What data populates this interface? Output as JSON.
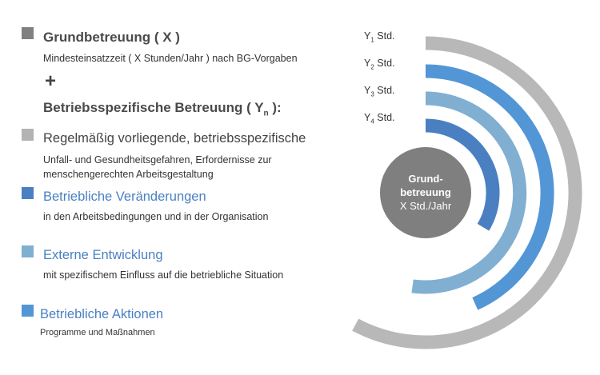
{
  "colors": {
    "grund": "#808080",
    "regel": "#b3b3b3",
    "veraenderung": "#4a80c2",
    "extern": "#80afd2",
    "aktion": "#5296d5",
    "y1": "#b8b8b8",
    "y2": "#5296d5",
    "y3": "#80afd2",
    "y4": "#4a80c2",
    "center": "#7f7f7f"
  },
  "legend": {
    "grund_title": "Grundbetreuung ( X )",
    "grund_sub": "Mindesteinsatzzeit ( X Stunden/Jahr ) nach BG-Vorgaben",
    "plus": "+",
    "betrieb_title": "Betriebsspezifische Betreuung ( Y",
    "betrieb_sub_n": "n",
    "betrieb_title_end": " ):",
    "regel_title": "Regelmäßig vorliegende, betriebsspezifische",
    "regel_sub1": "Unfall- und Gesundheitsgefahren,  Erfordernisse zur",
    "regel_sub2": "menschengerechten Arbeitsgestaltung",
    "veraenderung_title": "Betriebliche Veränderungen",
    "veraenderung_sub": "in den Arbeitsbedingungen und in der Organisation",
    "extern_title": "Externe Entwicklung",
    "extern_sub": "mit spezifischem Einfluss auf die betriebliche Situation",
    "aktion_title": "Betriebliche Aktionen",
    "aktion_sub": "Programme und Maßnahmen"
  },
  "diagram": {
    "labels": [
      {
        "y": "Y",
        "n": "1",
        "t": " Std."
      },
      {
        "y": "Y",
        "n": "2",
        "t": " Std."
      },
      {
        "y": "Y",
        "n": "3",
        "t": " Std."
      },
      {
        "y": "Y",
        "n": "4",
        "t": " Std."
      }
    ],
    "center_line1": "Grund-",
    "center_line2": "betreuung",
    "center_line3": "X Std./Jahr"
  }
}
